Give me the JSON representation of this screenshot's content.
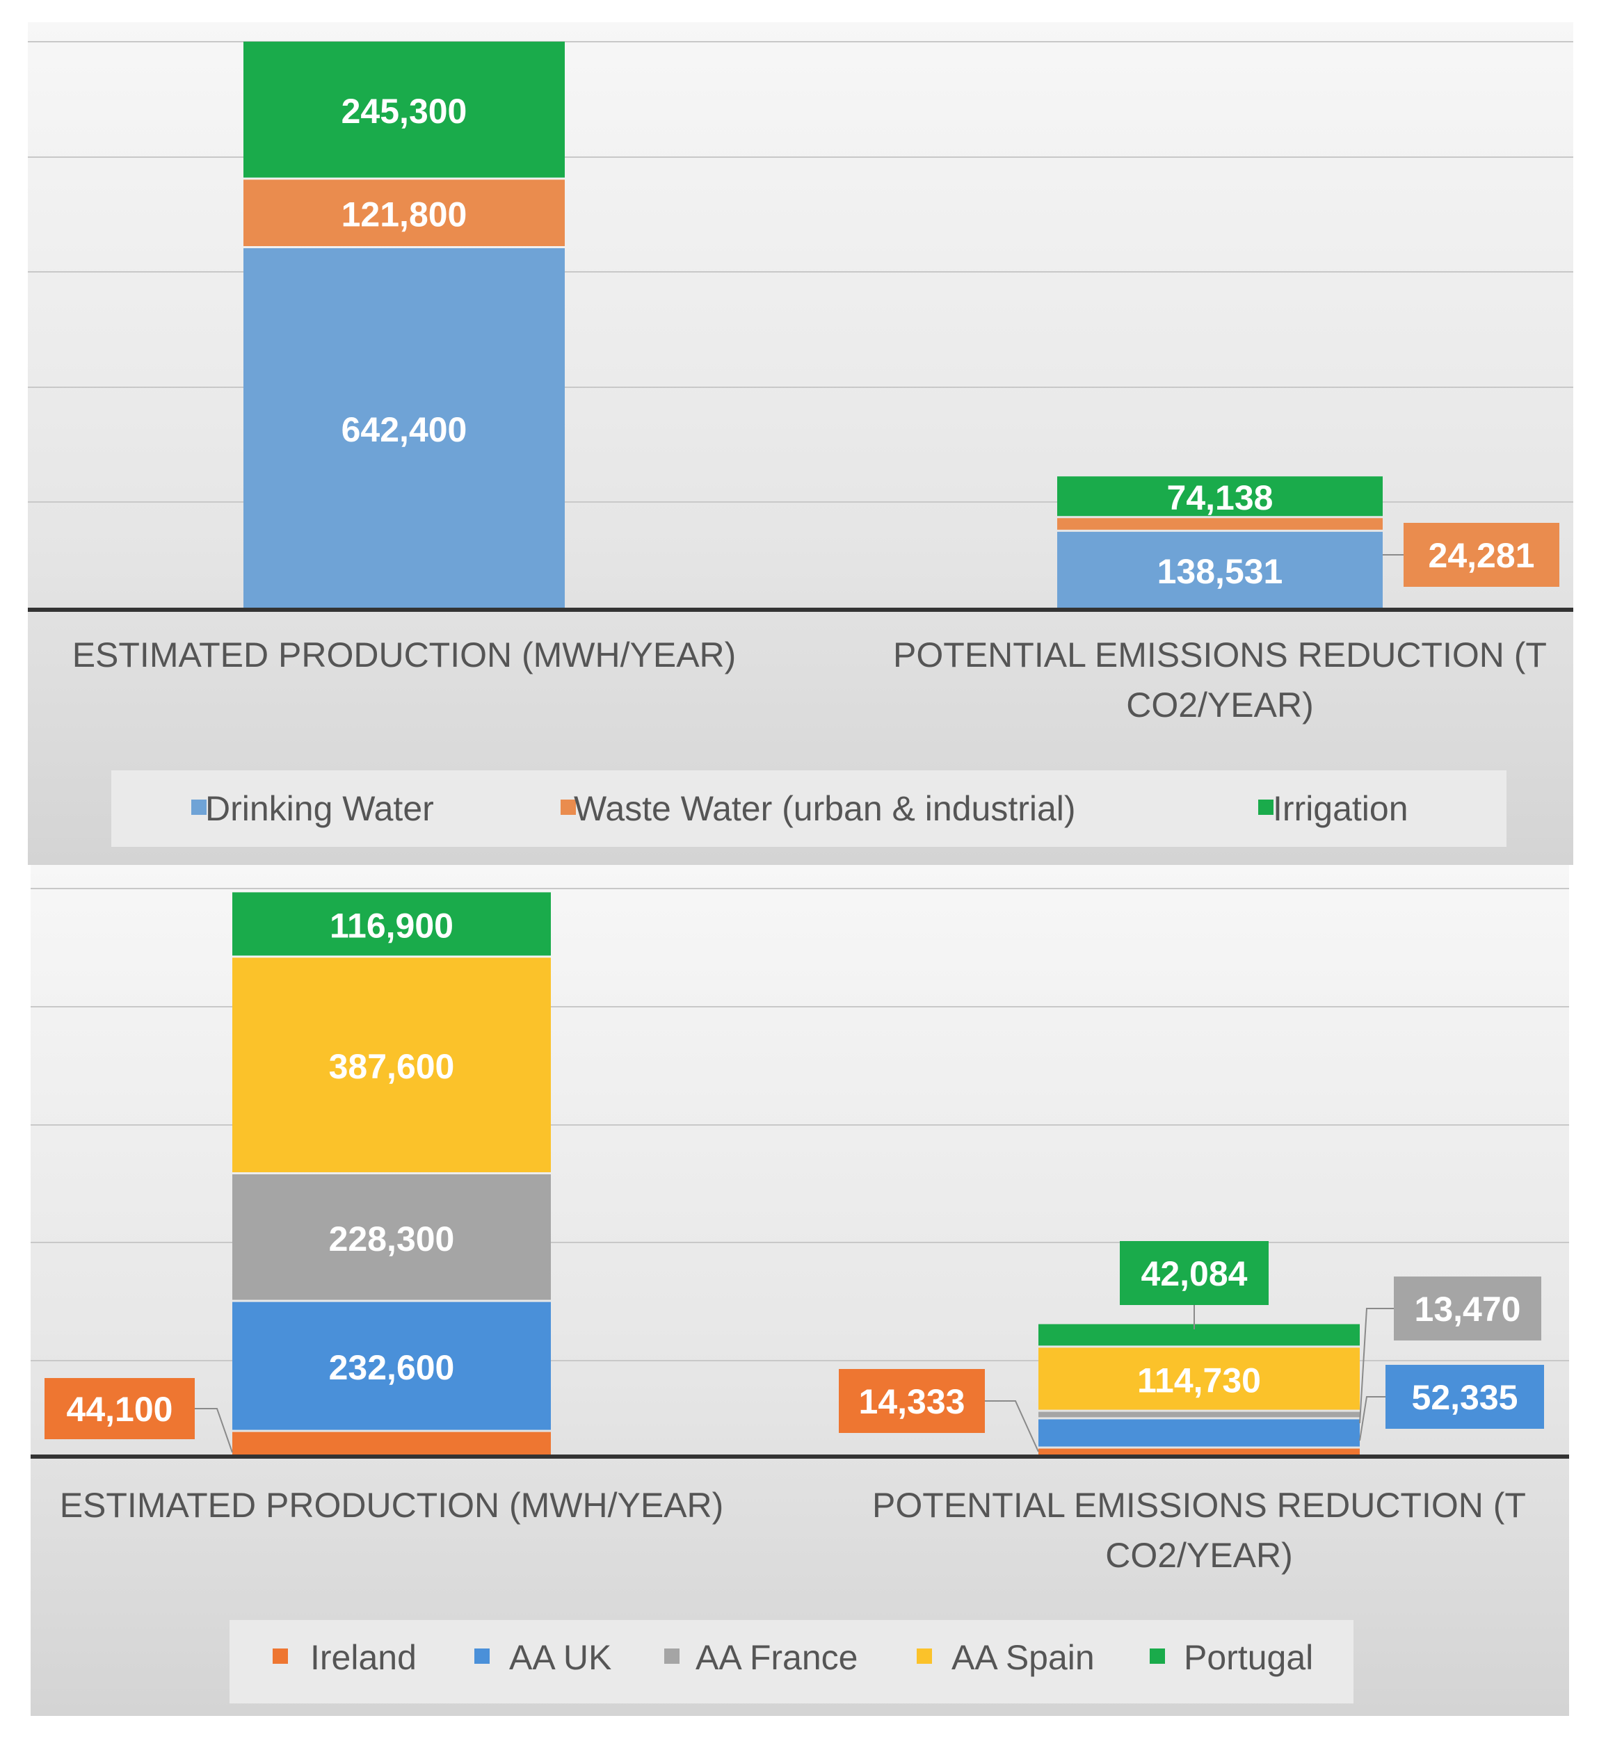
{
  "chart_data": [
    {
      "type": "bar",
      "stacked": true,
      "categories": [
        "ESTIMATED PRODUCTION (MWH/YEAR)",
        "POTENTIAL EMISSIONS REDUCTION (T CO2/YEAR)"
      ],
      "category_lines": [
        [
          "ESTIMATED PRODUCTION (MWH/YEAR)"
        ],
        [
          "POTENTIAL EMISSIONS REDUCTION (T",
          "CO2/YEAR)"
        ]
      ],
      "series": [
        {
          "name": "Drinking Water",
          "color": "#6fa3d6",
          "values": [
            642400,
            138531
          ],
          "labels": [
            "642,400",
            "138,531"
          ]
        },
        {
          "name": "Waste Water (urban & industrial)",
          "color": "#ea8c4e",
          "values": [
            121800,
            24281
          ],
          "labels": [
            "121,800",
            "24,281"
          ]
        },
        {
          "name": "Irrigation",
          "color": "#1aab4b",
          "values": [
            245300,
            74138
          ],
          "labels": [
            "245,300",
            "74,138"
          ]
        }
      ],
      "ylim": [
        0,
        1100000
      ],
      "grid": true,
      "legend": "bottom"
    },
    {
      "type": "bar",
      "stacked": true,
      "categories": [
        "ESTIMATED PRODUCTION (MWH/YEAR)",
        "POTENTIAL EMISSIONS REDUCTION (T CO2/YEAR)"
      ],
      "category_lines": [
        [
          "ESTIMATED PRODUCTION (MWH/YEAR)"
        ],
        [
          "POTENTIAL EMISSIONS REDUCTION (T",
          "CO2/YEAR)"
        ]
      ],
      "series": [
        {
          "name": "Ireland",
          "color": "#ee7631",
          "values": [
            44100,
            14333
          ],
          "labels": [
            "44,100",
            "14,333"
          ]
        },
        {
          "name": "AA UK",
          "color": "#4a90d9",
          "values": [
            232600,
            52335
          ],
          "labels": [
            "232,600",
            "52,335"
          ]
        },
        {
          "name": "AA France",
          "color": "#a5a5a5",
          "values": [
            228300,
            13470
          ],
          "labels": [
            "228,300",
            "13,470"
          ]
        },
        {
          "name": "AA Spain",
          "color": "#fbc22a",
          "values": [
            387600,
            114730
          ],
          "labels": [
            "387,600",
            "114,730"
          ]
        },
        {
          "name": "Portugal",
          "color": "#1aab4b",
          "values": [
            116900,
            42084
          ],
          "labels": [
            "116,900",
            "42,084"
          ]
        }
      ],
      "ylim": [
        0,
        1100000
      ],
      "grid": true,
      "legend": "bottom"
    }
  ]
}
